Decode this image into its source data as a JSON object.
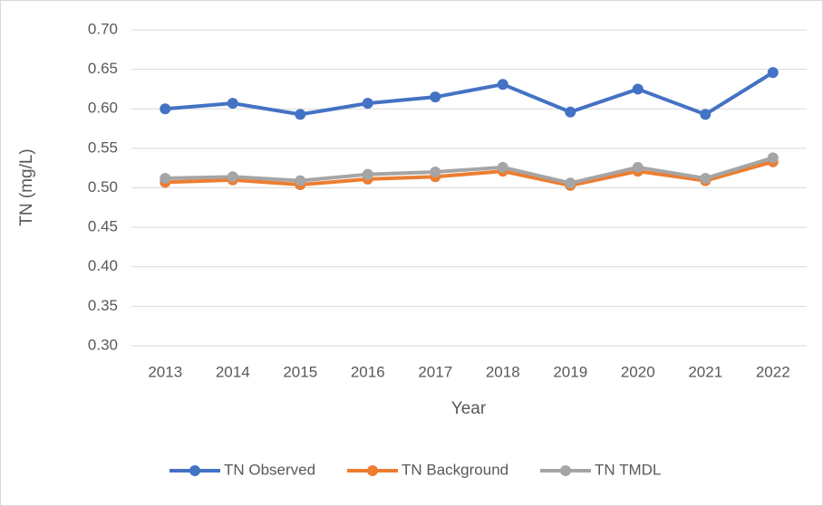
{
  "chart_data": {
    "type": "line",
    "x_label": "Year",
    "y_label": "TN (mg/L)",
    "categories": [
      "2013",
      "2014",
      "2015",
      "2016",
      "2017",
      "2018",
      "2019",
      "2020",
      "2021",
      "2022"
    ],
    "series": [
      {
        "name": "TN Observed",
        "color": "#4472c4",
        "values": [
          0.6,
          0.607,
          0.593,
          0.607,
          0.615,
          0.631,
          0.596,
          0.625,
          0.593,
          0.646
        ]
      },
      {
        "name": "TN Background",
        "color": "#ed7d31",
        "values": [
          0.507,
          0.51,
          0.504,
          0.511,
          0.514,
          0.521,
          0.503,
          0.521,
          0.509,
          0.533
        ]
      },
      {
        "name": "TN TMDL",
        "color": "#a5a5a5",
        "values": [
          0.512,
          0.514,
          0.509,
          0.517,
          0.52,
          0.526,
          0.506,
          0.526,
          0.512,
          0.538
        ]
      }
    ],
    "ylim": [
      0.3,
      0.7
    ],
    "yticks": [
      {
        "value": 0.3,
        "label": "0.30"
      },
      0.35,
      {
        "value": 0.4,
        "label": "0.40"
      },
      0.45,
      {
        "value": 0.5,
        "label": "0.50"
      },
      0.55,
      {
        "value": 0.6,
        "label": "0.60"
      },
      0.65,
      {
        "value": 0.7,
        "label": "0.70"
      }
    ],
    "grid": true,
    "legend": "bottom"
  }
}
